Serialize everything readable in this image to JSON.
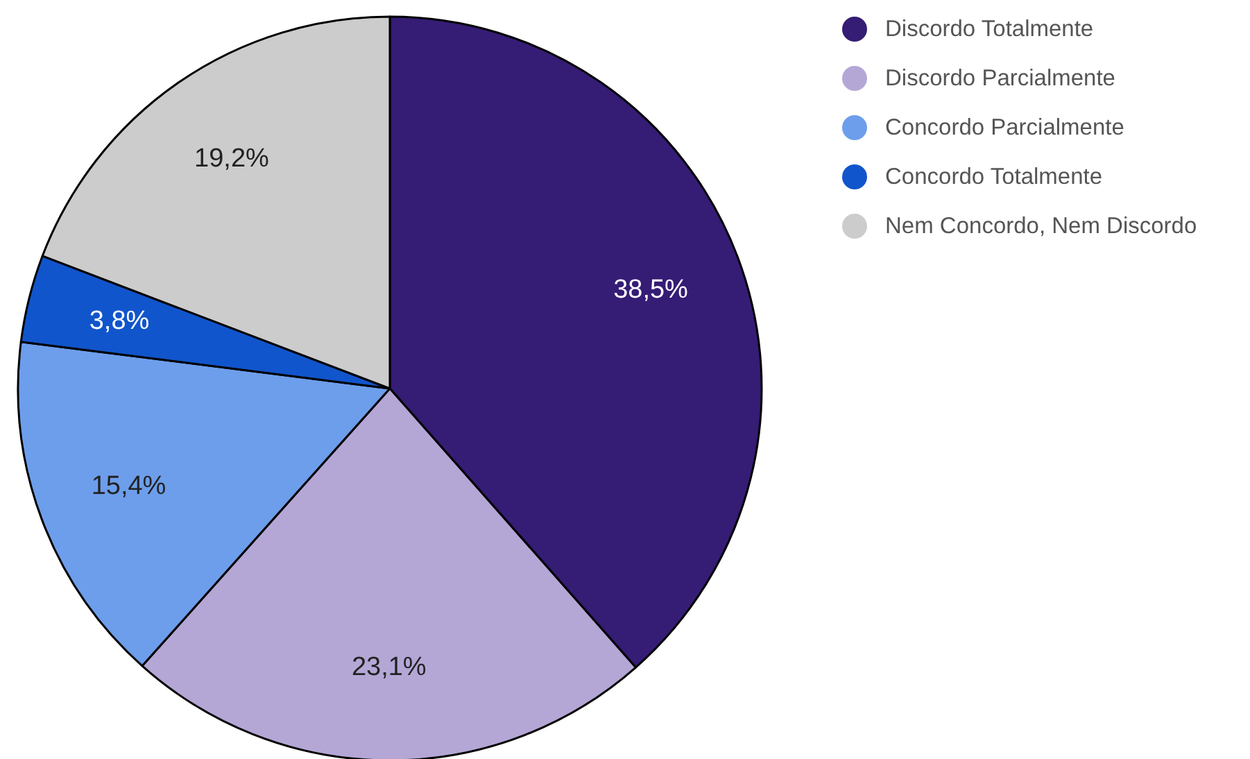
{
  "chart_data": {
    "type": "pie",
    "categories": [
      "Discordo Totalmente",
      "Discordo Parcialmente",
      "Concordo Parcialmente",
      "Concordo Totalmente",
      "Nem Concordo, Nem Discordo"
    ],
    "values": [
      38.5,
      23.1,
      15.4,
      3.8,
      19.2
    ],
    "colors": [
      "#351c75",
      "#b4a7d6",
      "#6d9eeb",
      "#1155cc",
      "#cccccc"
    ],
    "value_labels": [
      "38,5%",
      "23,1%",
      "15,4%",
      "3,8%",
      "19,2%"
    ],
    "legend": "top right"
  }
}
